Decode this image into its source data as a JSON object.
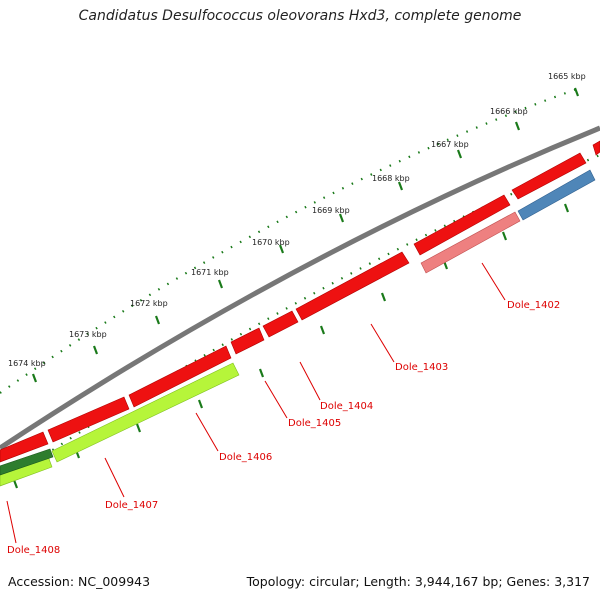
{
  "title": "Candidatus Desulfococcus oleovorans Hxd3, complete genome",
  "accession": "Accession: NC_009943",
  "topology": "Topology: circular; Length: 3,944,167 bp; Genes: 3,317",
  "colors": {
    "backbone": "#777777",
    "red_gene": "#ee1111",
    "pink_gene": "#ee8080",
    "blue_gene": "#4f86b8",
    "green_gene": "#b6f53a",
    "darkgreen_gene": "#2e7d2e",
    "tick": "#1a7a1a",
    "label": "#dd0000"
  },
  "scale": {
    "unit": "kbp",
    "labels": [
      "1665 kbp",
      "1666 kbp",
      "1667 kbp",
      "1668 kbp",
      "1669 kbp",
      "1670 kbp",
      "1671 kbp",
      "1672 kbp",
      "1673 kbp",
      "1674 kbp"
    ]
  },
  "gene_labels": [
    "Dole_1402",
    "Dole_1403",
    "Dole_1404",
    "Dole_1405",
    "Dole_1406",
    "Dole_1407",
    "Dole_1408"
  ]
}
